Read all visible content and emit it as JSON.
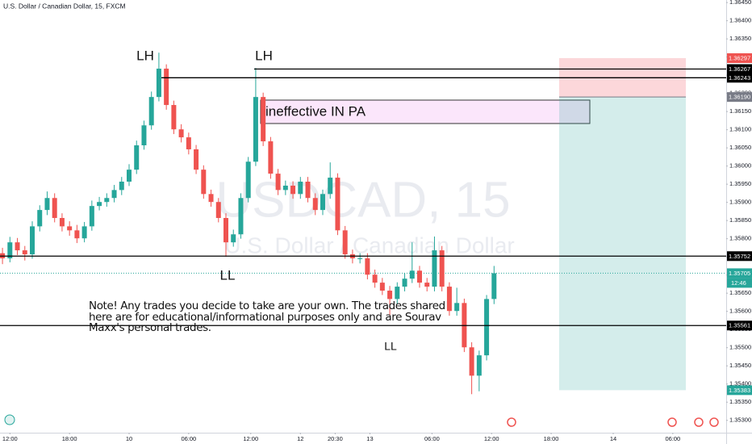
{
  "chart_data": {
    "type": "candlestick",
    "title": "U.S. Dollar / Canadian Dollar, 15, FXCM",
    "watermark": "USDCAD, 15",
    "watermark_subtitle": "U.S. Dollar / Canadian Dollar",
    "up_color": "#26a69a",
    "down_color": "#ef5350",
    "x": [
      0,
      3,
      6,
      9,
      12,
      15,
      18,
      21,
      24,
      27,
      30,
      33,
      36,
      39,
      42,
      45,
      48,
      51,
      54,
      57,
      60,
      63,
      66,
      69,
      72,
      75,
      78,
      81,
      84,
      87,
      90,
      93,
      96,
      99,
      102,
      105,
      108,
      111,
      114,
      117,
      120,
      123,
      126,
      129,
      132,
      135,
      138,
      141,
      144,
      147,
      150,
      153,
      156,
      159,
      162,
      165,
      168,
      171,
      174,
      177,
      180,
      183,
      186,
      189,
      192,
      195,
      198
    ],
    "open": [
      1.3576,
      1.35746,
      1.3579,
      1.35768,
      1.35757,
      1.35834,
      1.35879,
      1.35912,
      1.35857,
      1.35834,
      1.35823,
      1.35801,
      1.35834,
      1.3589,
      1.35901,
      1.35912,
      1.35934,
      1.35957,
      1.3599,
      1.36057,
      1.36112,
      1.3619,
      1.36268,
      1.36168,
      1.36101,
      1.36079,
      1.36046,
      1.3599,
      1.35923,
      1.35901,
      1.35857,
      1.3579,
      1.35812,
      1.35912,
      1.36012,
      1.3619,
      1.36068,
      1.35979,
      1.35934,
      1.35946,
      1.35923,
      1.35957,
      1.35912,
      1.35879,
      1.35923,
      1.35968,
      1.35823,
      1.35757,
      1.35746,
      1.35746,
      1.35701,
      1.35679,
      1.35657,
      1.35634,
      1.35668,
      1.3569,
      1.35712,
      1.35679,
      1.35668,
      1.35768,
      1.35668,
      1.35601,
      1.35623,
      1.35501,
      1.35423,
      1.35479,
      1.35634
    ],
    "high": [
      1.35775,
      1.35805,
      1.35802,
      1.3578,
      1.35848,
      1.35892,
      1.3593,
      1.35925,
      1.3587,
      1.35848,
      1.35838,
      1.35846,
      1.35905,
      1.35915,
      1.35925,
      1.35948,
      1.3597,
      1.36005,
      1.3607,
      1.36125,
      1.36205,
      1.36312,
      1.3628,
      1.3618,
      1.36115,
      1.36092,
      1.36058,
      1.36002,
      1.35935,
      1.35912,
      1.3587,
      1.35825,
      1.35925,
      1.36025,
      1.3627,
      1.36202,
      1.3608,
      1.35992,
      1.3596,
      1.35958,
      1.3597,
      1.3597,
      1.35925,
      1.35935,
      1.3601,
      1.3598,
      1.35835,
      1.3577,
      1.3576,
      1.3576,
      1.35715,
      1.35692,
      1.3567,
      1.3568,
      1.35705,
      1.3579,
      1.35725,
      1.35692,
      1.35806,
      1.3578,
      1.3568,
      1.35665,
      1.35635,
      1.35515,
      1.35492,
      1.35645,
      1.35725
    ],
    "low": [
      1.3573,
      1.35735,
      1.35755,
      1.3574,
      1.35745,
      1.3582,
      1.35865,
      1.35845,
      1.3582,
      1.35808,
      1.35788,
      1.3579,
      1.35822,
      1.35878,
      1.35888,
      1.359,
      1.3592,
      1.35945,
      1.35978,
      1.36045,
      1.361,
      1.36178,
      1.36155,
      1.36088,
      1.36065,
      1.36032,
      1.35978,
      1.3591,
      1.35888,
      1.35845,
      1.3575,
      1.35778,
      1.358,
      1.359,
      1.36,
      1.36055,
      1.35965,
      1.3592,
      1.3592,
      1.3591,
      1.3591,
      1.359,
      1.35865,
      1.35865,
      1.3591,
      1.3581,
      1.35745,
      1.35732,
      1.35732,
      1.35688,
      1.35665,
      1.35645,
      1.3559,
      1.3562,
      1.35655,
      1.35678,
      1.35665,
      1.35655,
      1.35655,
      1.35655,
      1.35588,
      1.35588,
      1.35488,
      1.35372,
      1.3538,
      1.35465,
      1.3562
    ],
    "close": [
      1.35746,
      1.3579,
      1.35768,
      1.35757,
      1.35834,
      1.35879,
      1.35912,
      1.35857,
      1.35834,
      1.35823,
      1.35801,
      1.35834,
      1.3589,
      1.35901,
      1.35912,
      1.35934,
      1.35957,
      1.3599,
      1.36057,
      1.36112,
      1.3619,
      1.36268,
      1.36168,
      1.36101,
      1.36079,
      1.36046,
      1.3599,
      1.35923,
      1.35901,
      1.35857,
      1.3579,
      1.35812,
      1.35912,
      1.36012,
      1.3619,
      1.36068,
      1.35979,
      1.35934,
      1.35946,
      1.35923,
      1.35957,
      1.35912,
      1.35879,
      1.35923,
      1.35968,
      1.35823,
      1.35757,
      1.35746,
      1.35746,
      1.35701,
      1.35679,
      1.35657,
      1.35634,
      1.35668,
      1.3569,
      1.35712,
      1.35679,
      1.35668,
      1.35768,
      1.35668,
      1.35601,
      1.35623,
      1.35501,
      1.35423,
      1.35479,
      1.35634,
      1.35705
    ],
    "xlim": [
      -1,
      291.5
    ],
    "ylim": [
      1.35266,
      1.36457
    ],
    "xticks": [
      {
        "value": 3,
        "label": "12:00"
      },
      {
        "value": 27,
        "label": "18:00"
      },
      {
        "value": 51,
        "label": "10"
      },
      {
        "value": 75,
        "label": "06:00"
      },
      {
        "value": 100,
        "label": "12:00"
      },
      {
        "value": 120,
        "label": "12"
      },
      {
        "value": 134,
        "label": "20:30"
      },
      {
        "value": 148,
        "label": "13"
      },
      {
        "value": 173,
        "label": "06:00"
      },
      {
        "value": 197,
        "label": "12:00"
      },
      {
        "value": 221,
        "label": "18:00"
      },
      {
        "value": 246,
        "label": "14"
      },
      {
        "value": 270,
        "label": "06:00"
      }
    ],
    "yticks": [
      {
        "value": 1.3645,
        "label": "1.36450"
      },
      {
        "value": 1.364,
        "label": "1.36400"
      },
      {
        "value": 1.3635,
        "label": "1.36350"
      },
      {
        "value": 1.363,
        "label": "1.36300"
      },
      {
        "value": 1.3625,
        "label": "1.36250"
      },
      {
        "value": 1.362,
        "label": "1.36200"
      },
      {
        "value": 1.3615,
        "label": "1.36150"
      },
      {
        "value": 1.361,
        "label": "1.36100"
      },
      {
        "value": 1.3605,
        "label": "1.36050"
      },
      {
        "value": 1.36,
        "label": "1.36000"
      },
      {
        "value": 1.3595,
        "label": "1.35950"
      },
      {
        "value": 1.359,
        "label": "1.35900"
      },
      {
        "value": 1.3585,
        "label": "1.35850"
      },
      {
        "value": 1.358,
        "label": "1.35800"
      },
      {
        "value": 1.3575,
        "label": "1.35750"
      },
      {
        "value": 1.357,
        "label": "1.35700"
      },
      {
        "value": 1.3565,
        "label": "1.35650"
      },
      {
        "value": 1.356,
        "label": "1.35600"
      },
      {
        "value": 1.3555,
        "label": "1.35550"
      },
      {
        "value": 1.355,
        "label": "1.35500"
      },
      {
        "value": 1.3545,
        "label": "1.35450"
      },
      {
        "value": 1.354,
        "label": "1.35400"
      },
      {
        "value": 1.3535,
        "label": "1.35350"
      },
      {
        "value": 1.353,
        "label": "1.35300"
      }
    ],
    "levels": [
      1.36267,
      1.36243,
      1.35752,
      1.35561
    ],
    "position": {
      "stop": 1.36297,
      "entry": {
        "value": 1.3619,
        "label": "1.36190"
      },
      "target": 1.35383
    },
    "last_price": 1.35705,
    "countdown": "12:46",
    "box_label": "ineffective IN PA",
    "annotations": [
      "LH",
      "LH",
      "LL",
      "LL"
    ],
    "note": "Note! Any trades you decide to take are your own. The trades shared here are for educational/informational purposes only and are Sourav Maxx's personal trades."
  }
}
